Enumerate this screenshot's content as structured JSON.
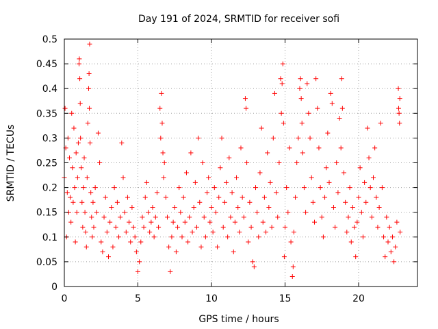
{
  "chart_data": {
    "type": "scatter",
    "title": "Day 191 of 2024, SRMTID for receiver sofi",
    "xlabel": "GPS time / hours",
    "ylabel": "SRMTID / TECUs",
    "xlim": [
      0,
      24
    ],
    "ylim": [
      0,
      0.5
    ],
    "xticks": [
      0,
      5,
      10,
      15,
      20
    ],
    "yticks": [
      0,
      0.05,
      0.1,
      0.15,
      0.2,
      0.25,
      0.3,
      0.35,
      0.4,
      0.45,
      0.5
    ],
    "xtick_labels": [
      "0",
      "5",
      "10",
      "15",
      "20"
    ],
    "ytick_labels": [
      "0",
      "0.05",
      "0.1",
      "0.15",
      "0.2",
      "0.25",
      "0.3",
      "0.35",
      "0.4",
      "0.45",
      "0.5"
    ],
    "grid": true,
    "marker": "+",
    "color": "#ff0000",
    "series": [
      {
        "name": "SRMTID",
        "points": [
          [
            0.0,
            0.22
          ],
          [
            0.05,
            0.36
          ],
          [
            0.1,
            0.28
          ],
          [
            0.15,
            0.1
          ],
          [
            0.2,
            0.19
          ],
          [
            0.25,
            0.3
          ],
          [
            0.3,
            0.15
          ],
          [
            0.35,
            0.26
          ],
          [
            0.4,
            0.18
          ],
          [
            0.45,
            0.13
          ],
          [
            0.5,
            0.35
          ],
          [
            0.55,
            0.24
          ],
          [
            0.6,
            0.17
          ],
          [
            0.65,
            0.32
          ],
          [
            0.7,
            0.2
          ],
          [
            0.75,
            0.09
          ],
          [
            0.8,
            0.27
          ],
          [
            0.85,
            0.15
          ],
          [
            0.9,
            0.22
          ],
          [
            0.95,
            0.29
          ],
          [
            1.0,
            0.45
          ],
          [
            1.02,
            0.46
          ],
          [
            1.05,
            0.42
          ],
          [
            1.08,
            0.37
          ],
          [
            1.1,
            0.3
          ],
          [
            1.15,
            0.24
          ],
          [
            1.2,
            0.17
          ],
          [
            1.25,
            0.12
          ],
          [
            1.3,
            0.2
          ],
          [
            1.35,
            0.26
          ],
          [
            1.4,
            0.15
          ],
          [
            1.45,
            0.11
          ],
          [
            1.5,
            0.08
          ],
          [
            1.55,
            0.22
          ],
          [
            1.6,
            0.33
          ],
          [
            1.65,
            0.4
          ],
          [
            1.68,
            0.43
          ],
          [
            1.7,
            0.36
          ],
          [
            1.72,
            0.49
          ],
          [
            1.75,
            0.29
          ],
          [
            1.8,
            0.19
          ],
          [
            1.85,
            0.14
          ],
          [
            1.9,
            0.1
          ],
          [
            1.95,
            0.17
          ],
          [
            2.0,
            0.12
          ],
          [
            2.1,
            0.2
          ],
          [
            2.2,
            0.15
          ],
          [
            2.3,
            0.31
          ],
          [
            2.4,
            0.25
          ],
          [
            2.5,
            0.09
          ],
          [
            2.6,
            0.07
          ],
          [
            2.7,
            0.14
          ],
          [
            2.8,
            0.18
          ],
          [
            2.9,
            0.11
          ],
          [
            3.0,
            0.06
          ],
          [
            3.1,
            0.13
          ],
          [
            3.2,
            0.16
          ],
          [
            3.3,
            0.08
          ],
          [
            3.4,
            0.2
          ],
          [
            3.5,
            0.12
          ],
          [
            3.6,
            0.17
          ],
          [
            3.7,
            0.1
          ],
          [
            3.8,
            0.14
          ],
          [
            3.9,
            0.29
          ],
          [
            4.0,
            0.22
          ],
          [
            4.1,
            0.15
          ],
          [
            4.2,
            0.11
          ],
          [
            4.3,
            0.18
          ],
          [
            4.4,
            0.13
          ],
          [
            4.5,
            0.09
          ],
          [
            4.6,
            0.16
          ],
          [
            4.7,
            0.12
          ],
          [
            4.8,
            0.1
          ],
          [
            4.9,
            0.07
          ],
          [
            5.0,
            0.03
          ],
          [
            5.1,
            0.05
          ],
          [
            5.2,
            0.09
          ],
          [
            5.3,
            0.14
          ],
          [
            5.4,
            0.12
          ],
          [
            5.5,
            0.18
          ],
          [
            5.6,
            0.21
          ],
          [
            5.7,
            0.15
          ],
          [
            5.8,
            0.11
          ],
          [
            5.9,
            0.13
          ],
          [
            6.0,
            0.16
          ],
          [
            6.1,
            0.1
          ],
          [
            6.2,
            0.14
          ],
          [
            6.3,
            0.19
          ],
          [
            6.4,
            0.12
          ],
          [
            6.5,
            0.36
          ],
          [
            6.55,
            0.3
          ],
          [
            6.6,
            0.39
          ],
          [
            6.65,
            0.33
          ],
          [
            6.7,
            0.27
          ],
          [
            6.75,
            0.22
          ],
          [
            6.8,
            0.25
          ],
          [
            6.9,
            0.18
          ],
          [
            7.0,
            0.14
          ],
          [
            7.1,
            0.08
          ],
          [
            7.2,
            0.03
          ],
          [
            7.3,
            0.1
          ],
          [
            7.4,
            0.13
          ],
          [
            7.5,
            0.16
          ],
          [
            7.6,
            0.07
          ],
          [
            7.7,
            0.12
          ],
          [
            7.8,
            0.2
          ],
          [
            7.9,
            0.15
          ],
          [
            8.0,
            0.1
          ],
          [
            8.1,
            0.18
          ],
          [
            8.2,
            0.13
          ],
          [
            8.3,
            0.23
          ],
          [
            8.4,
            0.09
          ],
          [
            8.5,
            0.14
          ],
          [
            8.6,
            0.27
          ],
          [
            8.7,
            0.11
          ],
          [
            8.8,
            0.16
          ],
          [
            8.9,
            0.21
          ],
          [
            9.0,
            0.12
          ],
          [
            9.1,
            0.3
          ],
          [
            9.2,
            0.17
          ],
          [
            9.3,
            0.08
          ],
          [
            9.4,
            0.25
          ],
          [
            9.5,
            0.14
          ],
          [
            9.6,
            0.1
          ],
          [
            9.7,
            0.19
          ],
          [
            9.8,
            0.22
          ],
          [
            9.9,
            0.13
          ],
          [
            10.0,
            0.16
          ],
          [
            10.1,
            0.11
          ],
          [
            10.2,
            0.2
          ],
          [
            10.3,
            0.15
          ],
          [
            10.4,
            0.08
          ],
          [
            10.5,
            0.18
          ],
          [
            10.6,
            0.24
          ],
          [
            10.7,
            0.3
          ],
          [
            10.8,
            0.12
          ],
          [
            10.9,
            0.17
          ],
          [
            11.0,
            0.21
          ],
          [
            11.1,
            0.1
          ],
          [
            11.2,
            0.26
          ],
          [
            11.3,
            0.14
          ],
          [
            11.4,
            0.19
          ],
          [
            11.5,
            0.07
          ],
          [
            11.6,
            0.13
          ],
          [
            11.7,
            0.22
          ],
          [
            11.8,
            0.16
          ],
          [
            11.9,
            0.11
          ],
          [
            12.0,
            0.28
          ],
          [
            12.1,
            0.18
          ],
          [
            12.2,
            0.14
          ],
          [
            12.3,
            0.38
          ],
          [
            12.35,
            0.36
          ],
          [
            12.4,
            0.25
          ],
          [
            12.5,
            0.09
          ],
          [
            12.6,
            0.17
          ],
          [
            12.7,
            0.12
          ],
          [
            12.8,
            0.05
          ],
          [
            12.9,
            0.04
          ],
          [
            13.0,
            0.2
          ],
          [
            13.1,
            0.15
          ],
          [
            13.2,
            0.1
          ],
          [
            13.3,
            0.23
          ],
          [
            13.4,
            0.32
          ],
          [
            13.5,
            0.13
          ],
          [
            13.6,
            0.18
          ],
          [
            13.7,
            0.11
          ],
          [
            13.8,
            0.27
          ],
          [
            13.9,
            0.16
          ],
          [
            14.0,
            0.21
          ],
          [
            14.1,
            0.12
          ],
          [
            14.2,
            0.3
          ],
          [
            14.3,
            0.39
          ],
          [
            14.4,
            0.19
          ],
          [
            14.5,
            0.14
          ],
          [
            14.6,
            0.25
          ],
          [
            14.7,
            0.42
          ],
          [
            14.75,
            0.35
          ],
          [
            14.8,
            0.41
          ],
          [
            14.85,
            0.45
          ],
          [
            14.9,
            0.33
          ],
          [
            14.95,
            0.06
          ],
          [
            15.0,
            0.12
          ],
          [
            15.1,
            0.2
          ],
          [
            15.2,
            0.15
          ],
          [
            15.3,
            0.28
          ],
          [
            15.4,
            0.09
          ],
          [
            15.5,
            0.02
          ],
          [
            15.55,
            0.04
          ],
          [
            15.6,
            0.11
          ],
          [
            15.7,
            0.18
          ],
          [
            15.8,
            0.25
          ],
          [
            15.9,
            0.3
          ],
          [
            16.0,
            0.4
          ],
          [
            16.05,
            0.42
          ],
          [
            16.1,
            0.38
          ],
          [
            16.15,
            0.33
          ],
          [
            16.2,
            0.27
          ],
          [
            16.3,
            0.2
          ],
          [
            16.4,
            0.15
          ],
          [
            16.5,
            0.41
          ],
          [
            16.6,
            0.35
          ],
          [
            16.7,
            0.3
          ],
          [
            16.8,
            0.22
          ],
          [
            16.9,
            0.17
          ],
          [
            17.0,
            0.13
          ],
          [
            17.1,
            0.42
          ],
          [
            17.2,
            0.36
          ],
          [
            17.3,
            0.28
          ],
          [
            17.4,
            0.2
          ],
          [
            17.5,
            0.14
          ],
          [
            17.6,
            0.1
          ],
          [
            17.7,
            0.18
          ],
          [
            17.8,
            0.24
          ],
          [
            17.9,
            0.31
          ],
          [
            18.0,
            0.21
          ],
          [
            18.1,
            0.39
          ],
          [
            18.2,
            0.37
          ],
          [
            18.3,
            0.16
          ],
          [
            18.4,
            0.12
          ],
          [
            18.5,
            0.25
          ],
          [
            18.6,
            0.19
          ],
          [
            18.7,
            0.34
          ],
          [
            18.8,
            0.28
          ],
          [
            18.85,
            0.42
          ],
          [
            18.9,
            0.36
          ],
          [
            19.0,
            0.23
          ],
          [
            19.1,
            0.17
          ],
          [
            19.2,
            0.11
          ],
          [
            19.3,
            0.14
          ],
          [
            19.4,
            0.2
          ],
          [
            19.5,
            0.09
          ],
          [
            19.6,
            0.16
          ],
          [
            19.7,
            0.12
          ],
          [
            19.8,
            0.06
          ],
          [
            19.9,
            0.13
          ],
          [
            20.0,
            0.18
          ],
          [
            20.1,
            0.24
          ],
          [
            20.2,
            0.15
          ],
          [
            20.3,
            0.1
          ],
          [
            20.4,
            0.21
          ],
          [
            20.5,
            0.17
          ],
          [
            20.6,
            0.32
          ],
          [
            20.7,
            0.26
          ],
          [
            20.8,
            0.2
          ],
          [
            20.9,
            0.14
          ],
          [
            21.0,
            0.22
          ],
          [
            21.1,
            0.28
          ],
          [
            21.2,
            0.18
          ],
          [
            21.3,
            0.12
          ],
          [
            21.4,
            0.16
          ],
          [
            21.5,
            0.33
          ],
          [
            21.6,
            0.2
          ],
          [
            21.7,
            0.1
          ],
          [
            21.8,
            0.06
          ],
          [
            21.9,
            0.14
          ],
          [
            22.0,
            0.09
          ],
          [
            22.1,
            0.12
          ],
          [
            22.2,
            0.07
          ],
          [
            22.3,
            0.1
          ],
          [
            22.4,
            0.05
          ],
          [
            22.5,
            0.08
          ],
          [
            22.6,
            0.13
          ],
          [
            22.7,
            0.4
          ],
          [
            22.72,
            0.36
          ],
          [
            22.75,
            0.35
          ],
          [
            22.78,
            0.33
          ],
          [
            22.8,
            0.38
          ],
          [
            22.82,
            0.11
          ]
        ]
      }
    ]
  }
}
